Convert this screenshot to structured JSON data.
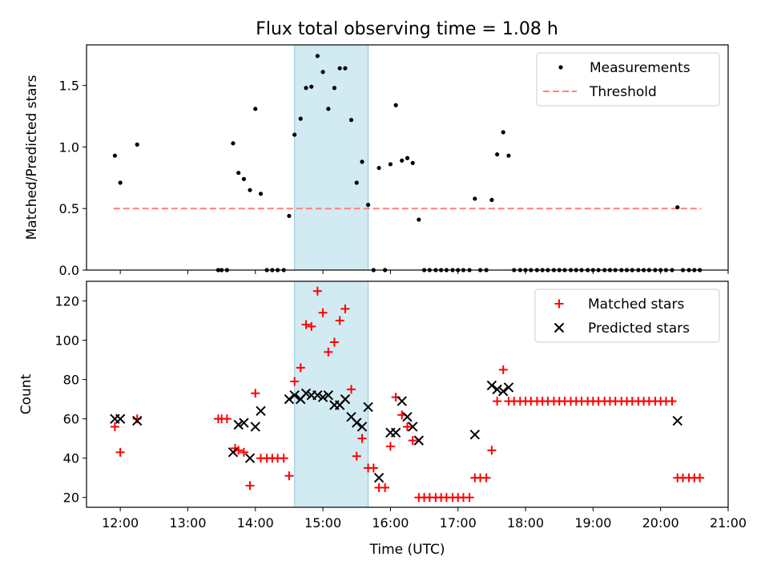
{
  "figure_title": "Flux total observing time = 1.08 h",
  "colors": {
    "measure": "#000000",
    "threshold": "#ff7f7f",
    "matched": "#ff0000",
    "predicted": "#000000",
    "band": "#add8e6"
  },
  "chart_data": [
    {
      "type": "scatter",
      "title": "Flux total observing time = 1.08 h",
      "xlabel": "",
      "ylabel": "Matched/Predicted stars",
      "xlim": [
        11.5,
        21.0
      ],
      "ylim": [
        0,
        1.83
      ],
      "yticks": [
        0.0,
        0.5,
        1.0,
        1.5
      ],
      "ytick_labels": [
        "0.0",
        "0.5",
        "1.0",
        "1.5"
      ],
      "highlight_band": [
        14.58,
        15.67
      ],
      "threshold": {
        "name": "Threshold",
        "y": 0.5,
        "x_range": [
          11.9,
          20.6
        ]
      },
      "legend": [
        "Measurements",
        "Threshold"
      ],
      "legend_position": "top-right",
      "series": [
        {
          "name": "Measurements",
          "x": [
            11.92,
            12.0,
            12.25,
            13.45,
            13.5,
            13.58,
            13.67,
            13.75,
            13.83,
            13.92,
            14.0,
            14.08,
            14.17,
            14.25,
            14.33,
            14.42,
            14.5,
            14.58,
            14.67,
            14.75,
            14.83,
            14.92,
            15.0,
            15.08,
            15.17,
            15.25,
            15.33,
            15.42,
            15.5,
            15.58,
            15.67,
            15.75,
            15.83,
            15.92,
            16.0,
            16.08,
            16.17,
            16.25,
            16.33,
            16.42,
            16.5,
            16.58,
            16.67,
            16.75,
            16.83,
            16.92,
            17.0,
            17.08,
            17.17,
            17.25,
            17.33,
            17.42,
            17.5,
            17.58,
            17.67,
            17.75,
            17.83,
            17.92,
            18.0,
            18.08,
            18.17,
            18.25,
            18.33,
            18.42,
            18.5,
            18.58,
            18.67,
            18.75,
            18.83,
            18.92,
            19.0,
            19.08,
            19.17,
            19.25,
            19.33,
            19.42,
            19.5,
            19.58,
            19.67,
            19.75,
            19.83,
            19.92,
            20.0,
            20.08,
            20.17,
            20.25,
            20.33,
            20.42,
            20.5,
            20.58
          ],
          "y": [
            0.93,
            0.71,
            1.02,
            0.0,
            0.0,
            0.0,
            1.03,
            0.79,
            0.74,
            0.65,
            1.31,
            0.62,
            0.0,
            0.0,
            0.0,
            0.0,
            0.44,
            1.1,
            1.23,
            1.48,
            1.49,
            1.74,
            1.61,
            1.31,
            1.48,
            1.64,
            1.64,
            1.22,
            0.71,
            0.88,
            0.53,
            0.0,
            0.83,
            0.0,
            0.86,
            1.34,
            0.89,
            0.91,
            0.87,
            0.41,
            0.0,
            0.0,
            0.0,
            0.0,
            0.0,
            0.0,
            0.0,
            0.0,
            0.0,
            0.58,
            0.0,
            0.0,
            0.57,
            0.94,
            1.12,
            0.93,
            0.0,
            0.0,
            0.0,
            0.0,
            0.0,
            0.0,
            0.0,
            0.0,
            0.0,
            0.0,
            0.0,
            0.0,
            0.0,
            0.0,
            0.0,
            0.0,
            0.0,
            0.0,
            0.0,
            0.0,
            0.0,
            0.0,
            0.0,
            0.0,
            0.0,
            0.0,
            0.0,
            0.0,
            0.0,
            0.51,
            0.0,
            0.0,
            0.0,
            0.0
          ]
        }
      ]
    },
    {
      "type": "scatter",
      "title": "",
      "xlabel": "Time (UTC)",
      "ylabel": "Count",
      "xlim": [
        11.5,
        21.0
      ],
      "ylim": [
        15,
        130
      ],
      "yticks": [
        20,
        40,
        60,
        80,
        100,
        120
      ],
      "ytick_labels": [
        "20",
        "40",
        "60",
        "80",
        "100",
        "120"
      ],
      "xticks": [
        12,
        13,
        14,
        15,
        16,
        17,
        18,
        19,
        20,
        21
      ],
      "xtick_labels": [
        "12:00",
        "13:00",
        "14:00",
        "15:00",
        "16:00",
        "17:00",
        "18:00",
        "19:00",
        "20:00",
        "21:00"
      ],
      "highlight_band": [
        14.58,
        15.67
      ],
      "legend": [
        "Matched stars",
        "Predicted stars"
      ],
      "legend_position": "top-right",
      "series": [
        {
          "name": "Matched stars",
          "x": [
            11.92,
            12.0,
            12.25,
            13.45,
            13.5,
            13.58,
            13.7,
            13.75,
            13.83,
            13.92,
            14.0,
            14.08,
            14.17,
            14.25,
            14.33,
            14.42,
            14.5,
            14.58,
            14.67,
            14.75,
            14.83,
            14.92,
            15.0,
            15.08,
            15.17,
            15.25,
            15.33,
            15.42,
            15.5,
            15.58,
            15.67,
            15.75,
            15.83,
            15.92,
            16.0,
            16.08,
            16.17,
            16.25,
            16.33,
            16.42,
            16.5,
            16.58,
            16.67,
            16.75,
            16.83,
            16.92,
            17.0,
            17.08,
            17.17,
            17.25,
            17.33,
            17.42,
            17.5,
            17.58,
            17.67,
            17.75,
            17.83,
            17.92,
            18.0,
            18.08,
            18.17,
            18.25,
            18.33,
            18.42,
            18.5,
            18.58,
            18.67,
            18.75,
            18.83,
            18.92,
            19.0,
            19.08,
            19.17,
            19.25,
            19.33,
            19.42,
            19.5,
            19.58,
            19.67,
            19.75,
            19.83,
            19.92,
            20.0,
            20.08,
            20.17,
            20.25,
            20.33,
            20.42,
            20.5,
            20.58
          ],
          "y": [
            56,
            43,
            60,
            60,
            60,
            60,
            45,
            44,
            43,
            26,
            73,
            40,
            40,
            40,
            40,
            40,
            31,
            79,
            86,
            108,
            107,
            125,
            114,
            94,
            99,
            110,
            116,
            75,
            41,
            50,
            35,
            35,
            25,
            25,
            46,
            71,
            62,
            56,
            49,
            20,
            20,
            20,
            20,
            20,
            20,
            20,
            20,
            20,
            20,
            30,
            30,
            30,
            44,
            69,
            85,
            69,
            69,
            69,
            69,
            69,
            69,
            69,
            69,
            69,
            69,
            69,
            69,
            69,
            69,
            69,
            69,
            69,
            69,
            69,
            69,
            69,
            69,
            69,
            69,
            69,
            69,
            69,
            69,
            69,
            69,
            30,
            30,
            30,
            30,
            30
          ]
        },
        {
          "name": "Predicted stars",
          "x": [
            11.92,
            12.0,
            12.25,
            13.67,
            13.75,
            13.83,
            13.92,
            14.0,
            14.08,
            14.5,
            14.58,
            14.67,
            14.75,
            14.83,
            14.92,
            15.0,
            15.08,
            15.17,
            15.25,
            15.33,
            15.42,
            15.5,
            15.58,
            15.67,
            15.83,
            16.0,
            16.08,
            16.17,
            16.25,
            16.33,
            16.42,
            17.25,
            17.5,
            17.58,
            17.67,
            17.75,
            20.25
          ],
          "y": [
            60,
            60,
            59,
            43,
            57,
            58,
            40,
            56,
            64,
            70,
            72,
            70,
            73,
            72,
            72,
            71,
            72,
            67,
            67,
            70,
            61,
            58,
            56,
            66,
            30,
            53,
            53,
            69,
            61,
            56,
            49,
            52,
            77,
            75,
            74,
            76,
            59
          ]
        }
      ]
    }
  ]
}
